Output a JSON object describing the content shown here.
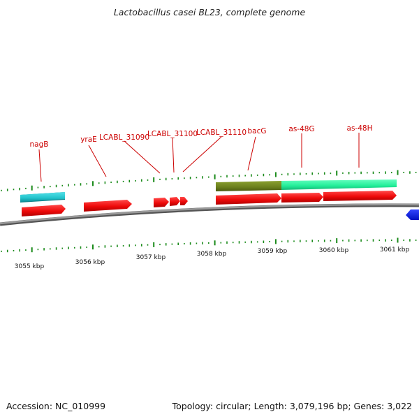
{
  "title": "Lactobacillus casei BL23, complete genome",
  "footer": {
    "accession": "Accession: NC_010999",
    "info": "Topology: circular; Length: 3,079,196 bp; Genes: 3,022"
  },
  "colors": {
    "gene": "#ff1010",
    "label": "#cc0000",
    "tick": "#1a8a1a",
    "backbone": "#808080",
    "cyan": "#22cccc",
    "green": "#22ee99",
    "olive": "#6b7f1c",
    "blue": "#0018ee"
  },
  "scale_labels": [
    {
      "text": "3055 kbp",
      "kbp": 3055
    },
    {
      "text": "3056 kbp",
      "kbp": 3056
    },
    {
      "text": "3057 kbp",
      "kbp": 3057
    },
    {
      "text": "3058 kbp",
      "kbp": 3058
    },
    {
      "text": "3059 kbp",
      "kbp": 3059
    },
    {
      "text": "3060 kbp",
      "kbp": 3060
    },
    {
      "text": "3061 kbp",
      "kbp": 3061
    }
  ],
  "gene_labels": [
    {
      "name": "nagB"
    },
    {
      "name": "yraE"
    },
    {
      "name": "LCABL_31090"
    },
    {
      "name": "LCABL_31100"
    },
    {
      "name": "LCABL_31110"
    },
    {
      "name": "bacG"
    },
    {
      "name": "as-48G"
    },
    {
      "name": "as-48H"
    }
  ]
}
